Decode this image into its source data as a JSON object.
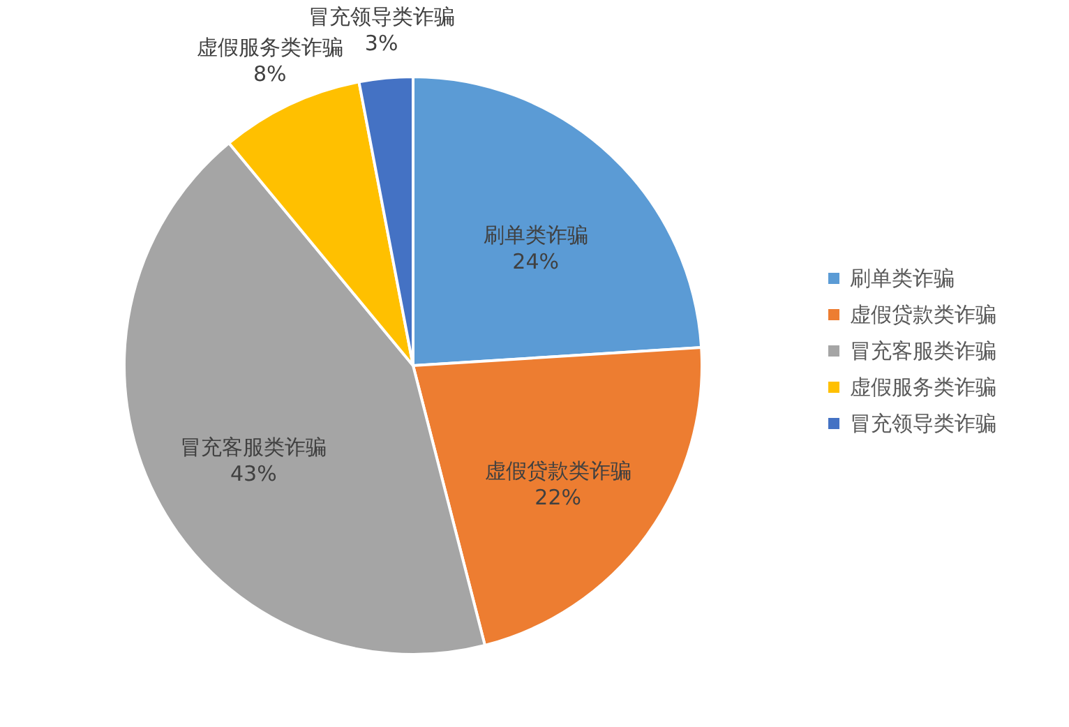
{
  "chart_data": {
    "type": "pie",
    "categories": [
      "刷单类诈骗",
      "虚假贷款类诈骗",
      "冒充客服类诈骗",
      "虚假服务类诈骗",
      "冒充领导类诈骗"
    ],
    "values": [
      24,
      22,
      43,
      8,
      3
    ],
    "value_labels": [
      "24%",
      "22%",
      "43%",
      "8%",
      "3%"
    ],
    "colors": [
      "#5b9bd5",
      "#ed7d31",
      "#a5a5a5",
      "#ffc000",
      "#4472c4"
    ],
    "legend": "right"
  }
}
